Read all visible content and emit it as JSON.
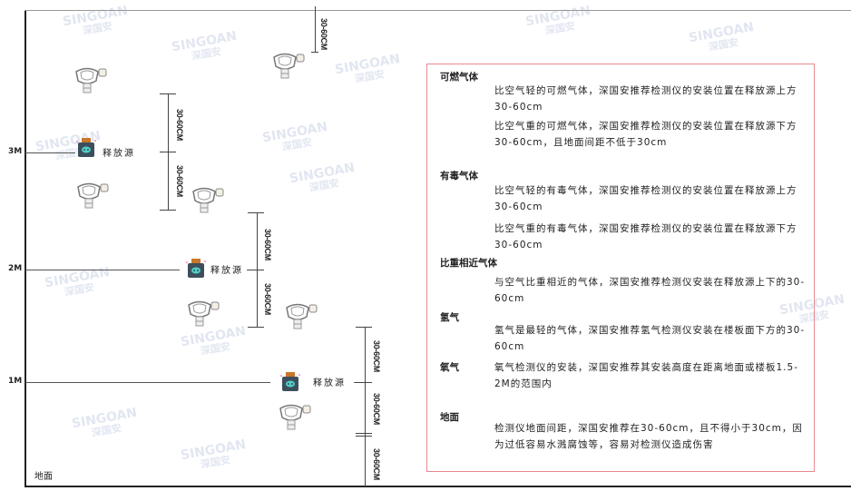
{
  "levels": {
    "m3": "3M",
    "m2": "2M",
    "m1": "1M",
    "ground": "地面"
  },
  "source_label": "释放源",
  "dimension_label": "30-60CM",
  "watermark": "SINGOAN 深国安",
  "panel": {
    "combustible": {
      "title": "可燃气体",
      "lighter": "比空气轻的可燃气体，深国安推荐检测仪的安装位置在释放源上方30-60cm",
      "heavier": "比空气重的可燃气体，深国安推荐检测仪的安装位置在释放源下方30-60cm，且地面间距不低于30cm"
    },
    "toxic": {
      "title": "有毒气体",
      "lighter": "比空气轻的有毒气体，深国安推荐检测仪的安装位置在释放源上方30-60cm",
      "heavier": "比空气重的有毒气体，深国安推荐检测仪的安装位置在释放源下方30-60cm"
    },
    "similar": {
      "title": "比重相近气体",
      "text": "与空气比重相近的气体，深国安推荐检测仪安装在释放源上下的30-60cm"
    },
    "hydrogen": {
      "title": "氢气",
      "text": "氢气是最轻的气体，深国安推荐氢气检测仪安装在楼板面下方的30-60cm"
    },
    "oxygen": {
      "title": "氧气",
      "text": "氧气检测仪的安装，深国安推荐其安装高度在距离地面或楼板1.5-2M的范围内"
    },
    "ground": {
      "title": "地面",
      "text": "检测仪地面间距，深国安推荐在30-60cm，且不得小于30cm，因为过低容易水溅腐蚀等，容易对检测仪造成伤害"
    }
  },
  "colors": {
    "panel_border": "#e88a8f",
    "source_body": "#3d4f5c",
    "source_cap": "#c9772a",
    "source_face": "#4fd1c5"
  }
}
